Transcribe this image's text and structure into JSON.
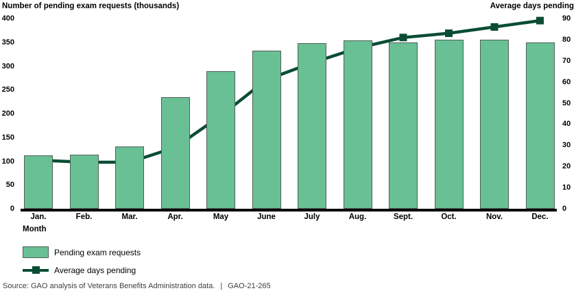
{
  "header": {
    "left_axis_title": "Number of pending exam requests (thousands)",
    "right_axis_title": "Average days pending"
  },
  "chart_data": {
    "type": "bar+line combo",
    "categories": [
      "Jan.",
      "Feb.",
      "Mar.",
      "Apr.",
      "May",
      "June",
      "July",
      "Aug.",
      "Sept.",
      "Oct.",
      "Nov.",
      "Dec."
    ],
    "series": [
      {
        "name": "Pending exam requests",
        "type": "bar",
        "axis": "left",
        "unit": "thousands",
        "values": [
          112,
          114,
          131,
          234,
          289,
          332,
          348,
          354,
          350,
          356,
          355,
          349
        ]
      },
      {
        "name": "Average days pending",
        "type": "line",
        "axis": "right",
        "unit": "days",
        "values": [
          23,
          22,
          22,
          29,
          44,
          61,
          69,
          76,
          81,
          83,
          86,
          89
        ]
      }
    ],
    "left_axis": {
      "title": "Number of pending exam requests (thousands)",
      "min": 0,
      "max": 400,
      "tick_step": 50,
      "ticks": [
        400,
        350,
        300,
        250,
        200,
        150,
        100,
        50,
        0
      ]
    },
    "right_axis": {
      "title": "Average days pending",
      "min": 0,
      "max": 90,
      "tick_step": 10,
      "ticks": [
        90,
        80,
        70,
        60,
        50,
        40,
        30,
        20,
        10,
        0
      ]
    },
    "xlabel": "Month",
    "grid": false,
    "legend_position": "bottom-left",
    "colors": {
      "bar_fill": "#68c094",
      "bar_border": "#4f5f57",
      "line": "#0a4d33",
      "axis_line": "#000000"
    }
  },
  "legend": {
    "items": [
      {
        "label": "Pending exam requests",
        "type": "bar"
      },
      {
        "label": "Average days pending",
        "type": "line"
      }
    ]
  },
  "source": {
    "prefix": "Source: GAO analysis of Veterans Benefits Administration data.",
    "separator": "|",
    "report_id": "GAO-21-265"
  }
}
